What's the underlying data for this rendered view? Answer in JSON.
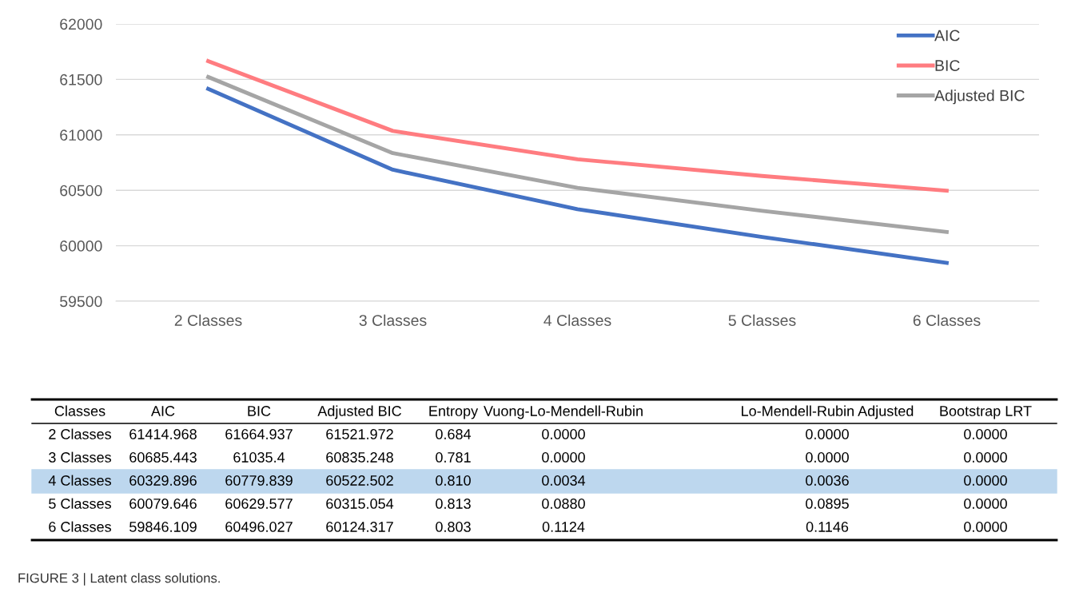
{
  "chart_data": {
    "type": "line",
    "categories": [
      "2 Classes",
      "3 Classes",
      "4 Classes",
      "5 Classes",
      "6 Classes"
    ],
    "series": [
      {
        "name": "AIC",
        "color": "#4472c4",
        "values": [
          61414.968,
          60685.443,
          60329.896,
          60079.646,
          59846.109
        ]
      },
      {
        "name": "BIC",
        "color": "#ff7c80",
        "values": [
          61664.937,
          61035.4,
          60779.839,
          60629.577,
          60496.027
        ]
      },
      {
        "name": "Adjusted BIC",
        "color": "#a5a5a5",
        "values": [
          61521.972,
          60835.248,
          60522.502,
          60315.054,
          60124.317
        ]
      }
    ],
    "ylim": [
      59500,
      62000
    ],
    "yticks": [
      59500,
      60000,
      60500,
      61000,
      61500,
      62000
    ],
    "grid": "y",
    "legend": "top right",
    "marker": "none",
    "line_style": "solid",
    "annotations": [
      "Classes",
      "Entropy",
      "Vuong-Lo-Mendell-Rubin",
      "Lo-Mendell-Rubin Adjusted",
      "Bootstrap LRT",
      "61414.968",
      "61664.937",
      "61521.972",
      "0.684",
      "0.0000",
      "0.0000",
      "0.0000",
      "60685.443",
      "61035.4",
      "60835.248",
      "0.781",
      "0.0000",
      "0.0000",
      "0.0000",
      "60329.896",
      "60779.839",
      "60522.502",
      "0.810",
      "0.0034",
      "0.0036",
      "0.0000",
      "60079.646",
      "60629.577",
      "60315.054",
      "0.813",
      "0.0880",
      "0.0895",
      "0.0000",
      "59846.109",
      "60496.027",
      "60124.317",
      "0.803",
      "0.1124",
      "0.1146",
      "0.0000",
      "FIGURE 3 | Latent class solutions."
    ]
  }
}
